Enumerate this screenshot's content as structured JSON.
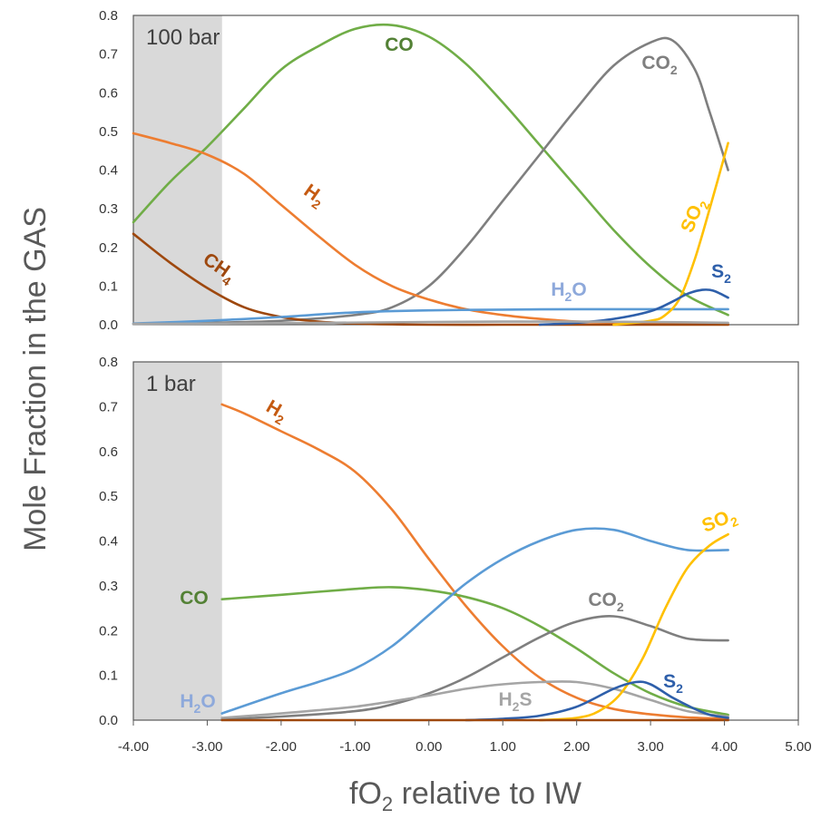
{
  "chart_data": {
    "type": "line",
    "ylabel": "Mole Fraction in the GAS",
    "xlabel_main": "fO",
    "xlabel_sub": "2",
    "xlabel_rest": " relative to IW",
    "xlim": [
      -4.0,
      5.0
    ],
    "x_ticks": [
      "-4.00",
      "-3.00",
      "-2.00",
      "-1.00",
      "0.00",
      "1.00",
      "2.00",
      "3.00",
      "4.00",
      "5.00"
    ],
    "shaded_region_x": [
      -4.0,
      -2.8
    ],
    "colors": {
      "CO": "#70AD47",
      "CO_label": "#538135",
      "CO2": "#7F7F7F",
      "H2": "#ED7D31",
      "H2_label": "#C55A11",
      "CH4": "#9E480E",
      "H2O": "#5B9BD5",
      "H2O_label": "#8EA9DB",
      "SO2": "#FFC000",
      "S2": "#2E5FAA",
      "H2S": "#A5A5A5",
      "shade": "#D9D9D9"
    },
    "panels": [
      {
        "label": "100 bar",
        "ylim": [
          0,
          0.8
        ],
        "y_ticks": [
          "0.0",
          "0.1",
          "0.2",
          "0.3",
          "0.4",
          "0.5",
          "0.6",
          "0.7",
          "0.8"
        ],
        "series": [
          {
            "name": "CO",
            "label_main": "CO",
            "label_sub": "",
            "color_key": "CO",
            "x": [
              -4.0,
              -3.5,
              -3.0,
              -2.5,
              -2.0,
              -1.5,
              -1.0,
              -0.5,
              0.0,
              0.5,
              1.0,
              1.5,
              2.0,
              2.5,
              3.0,
              3.5,
              4.05
            ],
            "y": [
              0.265,
              0.37,
              0.46,
              0.56,
              0.66,
              0.72,
              0.765,
              0.775,
              0.745,
              0.675,
              0.575,
              0.465,
              0.355,
              0.245,
              0.15,
              0.075,
              0.025
            ]
          },
          {
            "name": "CO2",
            "label_main": "CO",
            "label_sub": "2",
            "color_key": "CO2",
            "x": [
              -4.0,
              -3.0,
              -2.0,
              -1.0,
              -0.5,
              0.0,
              0.5,
              1.0,
              1.5,
              2.0,
              2.5,
              3.0,
              3.3,
              3.6,
              3.8,
              4.05
            ],
            "y": [
              0.002,
              0.005,
              0.01,
              0.025,
              0.045,
              0.1,
              0.2,
              0.32,
              0.44,
              0.56,
              0.67,
              0.73,
              0.735,
              0.66,
              0.55,
              0.4
            ]
          },
          {
            "name": "H2",
            "label_main": "H",
            "label_sub": "2",
            "color_key": "H2",
            "x": [
              -4.0,
              -3.5,
              -3.0,
              -2.5,
              -2.0,
              -1.5,
              -1.0,
              -0.5,
              0.0,
              0.5,
              1.0,
              1.5,
              2.0,
              2.5,
              3.0,
              3.5,
              4.05
            ],
            "y": [
              0.495,
              0.47,
              0.44,
              0.39,
              0.31,
              0.23,
              0.155,
              0.1,
              0.065,
              0.04,
              0.025,
              0.015,
              0.008,
              0.005,
              0.003,
              0.002,
              0.001
            ]
          },
          {
            "name": "CH4",
            "label_main": "CH",
            "label_sub": "4",
            "color_key": "CH4",
            "x": [
              -4.0,
              -3.5,
              -3.0,
              -2.5,
              -2.0,
              -1.5,
              -1.0,
              -0.5,
              0.0,
              1.0,
              2.0,
              3.0,
              4.05
            ],
            "y": [
              0.235,
              0.16,
              0.095,
              0.045,
              0.02,
              0.008,
              0.003,
              0.001,
              0.0,
              0.0,
              0.0,
              0.0,
              0.0
            ]
          },
          {
            "name": "H2O",
            "label_main": "H",
            "label_sub": "2",
            "label_tail": "O",
            "color_key": "H2O",
            "x": [
              -4.0,
              -3.0,
              -2.0,
              -1.0,
              0.0,
              1.0,
              2.0,
              3.0,
              4.05
            ],
            "y": [
              0.003,
              0.01,
              0.02,
              0.032,
              0.037,
              0.039,
              0.04,
              0.04,
              0.04
            ]
          },
          {
            "name": "SO2",
            "label_main": "SO",
            "label_sub": "2",
            "color_key": "SO2",
            "x": [
              2.5,
              3.0,
              3.2,
              3.4,
              3.6,
              3.8,
              4.05
            ],
            "y": [
              0.0,
              0.01,
              0.025,
              0.07,
              0.17,
              0.3,
              0.47
            ]
          },
          {
            "name": "S2",
            "label_main": "S",
            "label_sub": "2",
            "color_key": "S2",
            "x": [
              1.5,
              2.0,
              2.5,
              3.0,
              3.3,
              3.5,
              3.7,
              3.85,
              4.05
            ],
            "y": [
              0.0,
              0.005,
              0.015,
              0.035,
              0.06,
              0.08,
              0.09,
              0.088,
              0.07
            ]
          },
          {
            "name": "H2S",
            "label_main": "",
            "label_sub": "",
            "color_key": "H2S",
            "x": [
              -4.0,
              -2.0,
              0.0,
              1.0,
              2.0,
              3.0,
              4.05
            ],
            "y": [
              0.002,
              0.004,
              0.007,
              0.008,
              0.008,
              0.007,
              0.005
            ]
          }
        ]
      },
      {
        "label": "1 bar",
        "ylim": [
          0,
          0.8
        ],
        "y_ticks": [
          "0.0",
          "0.1",
          "0.2",
          "0.3",
          "0.4",
          "0.5",
          "0.6",
          "0.7",
          "0.8"
        ],
        "series": [
          {
            "name": "H2",
            "label_main": "H",
            "label_sub": "2",
            "color_key": "H2",
            "x": [
              -2.8,
              -2.5,
              -2.0,
              -1.5,
              -1.0,
              -0.5,
              0.0,
              0.5,
              1.0,
              1.5,
              2.0,
              2.5,
              3.0,
              3.5,
              4.05
            ],
            "y": [
              0.705,
              0.685,
              0.645,
              0.605,
              0.555,
              0.47,
              0.36,
              0.255,
              0.165,
              0.095,
              0.05,
              0.025,
              0.013,
              0.006,
              0.003
            ]
          },
          {
            "name": "CO",
            "label_main": "CO",
            "label_sub": "",
            "color_key": "CO",
            "x": [
              -2.8,
              -2.0,
              -1.0,
              -0.5,
              0.0,
              0.5,
              1.0,
              1.5,
              2.0,
              2.5,
              3.0,
              3.5,
              4.05
            ],
            "y": [
              0.27,
              0.28,
              0.293,
              0.297,
              0.29,
              0.275,
              0.25,
              0.21,
              0.16,
              0.105,
              0.06,
              0.03,
              0.012
            ]
          },
          {
            "name": "H2O",
            "label_main": "H",
            "label_sub": "2",
            "label_tail": "O",
            "color_key": "H2O",
            "x": [
              -2.8,
              -2.0,
              -1.5,
              -1.0,
              -0.5,
              0.0,
              0.5,
              1.0,
              1.5,
              2.0,
              2.5,
              3.0,
              3.5,
              4.05
            ],
            "y": [
              0.015,
              0.06,
              0.085,
              0.115,
              0.165,
              0.235,
              0.305,
              0.36,
              0.4,
              0.425,
              0.425,
              0.4,
              0.38,
              0.38
            ]
          },
          {
            "name": "CO2",
            "label_main": "CO",
            "label_sub": "2",
            "color_key": "CO2",
            "x": [
              -2.8,
              -2.0,
              -1.0,
              -0.5,
              0.0,
              0.5,
              1.0,
              1.5,
              2.0,
              2.5,
              3.0,
              3.5,
              4.05
            ],
            "y": [
              0.002,
              0.008,
              0.02,
              0.035,
              0.06,
              0.095,
              0.14,
              0.185,
              0.22,
              0.232,
              0.21,
              0.182,
              0.178
            ]
          },
          {
            "name": "H2S",
            "label_main": "H",
            "label_sub": "2",
            "label_tail": "S",
            "color_key": "H2S",
            "x": [
              -2.8,
              -2.0,
              -1.5,
              -1.0,
              -0.5,
              0.0,
              0.5,
              1.0,
              1.5,
              2.0,
              2.5,
              3.0,
              3.5,
              4.05
            ],
            "y": [
              0.005,
              0.015,
              0.022,
              0.03,
              0.042,
              0.055,
              0.07,
              0.08,
              0.085,
              0.085,
              0.07,
              0.045,
              0.02,
              0.008
            ]
          },
          {
            "name": "SO2",
            "label_main": "SO",
            "label_sub": "2",
            "color_key": "SO2",
            "x": [
              1.5,
              2.0,
              2.3,
              2.6,
              2.9,
              3.2,
              3.5,
              3.8,
              4.05
            ],
            "y": [
              0.0,
              0.005,
              0.02,
              0.06,
              0.14,
              0.25,
              0.34,
              0.39,
              0.415
            ]
          },
          {
            "name": "S2",
            "label_main": "S",
            "label_sub": "2",
            "color_key": "S2",
            "x": [
              0.5,
              1.0,
              1.5,
              2.0,
              2.5,
              2.8,
              3.0,
              3.3,
              3.6,
              3.8,
              4.05
            ],
            "y": [
              0.0,
              0.003,
              0.01,
              0.03,
              0.07,
              0.085,
              0.08,
              0.05,
              0.025,
              0.012,
              0.005
            ]
          },
          {
            "name": "CH4",
            "label_main": "",
            "label_sub": "",
            "color_key": "CH4",
            "x": [
              -2.8,
              0.0,
              2.0,
              4.05
            ],
            "y": [
              0.0,
              0.0,
              0.0,
              0.0
            ]
          }
        ]
      }
    ]
  }
}
